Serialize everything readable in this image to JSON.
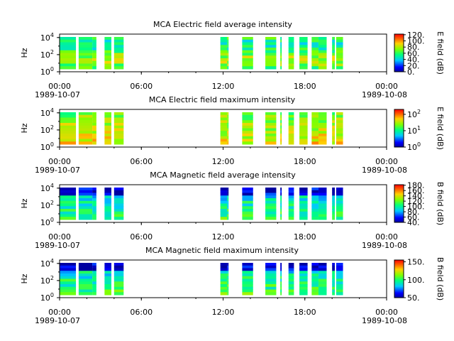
{
  "chart_data": [
    {
      "type": "heatmap",
      "title": "MCA  Electric field average intensity",
      "ylabel": "Hz",
      "colorbar_label": "E field (dB)",
      "colorbar_scale": "linear",
      "colorbar_ticks": [
        "0.",
        "20.",
        "40.",
        "60.",
        "80.",
        "100.",
        "120."
      ],
      "yscale": "log",
      "ylim": [
        "10^0",
        "10^4"
      ],
      "y_ticks": [
        {
          "base": "10",
          "exp": "0"
        },
        {
          "base": "10",
          "exp": "2"
        },
        {
          "base": "10",
          "exp": "4"
        }
      ],
      "x_ticks": [
        "00:00",
        "06:00",
        "12:00",
        "18:00",
        "00:00"
      ],
      "x_dates": [
        "1989-10-07",
        "1989-10-08"
      ],
      "data_intervals_hours": [
        [
          0.0,
          1.2
        ],
        [
          1.4,
          2.4
        ],
        [
          2.4,
          2.7
        ],
        [
          3.3,
          3.8
        ],
        [
          4.0,
          4.7
        ],
        [
          11.8,
          12.3
        ],
        [
          12.3,
          12.4
        ],
        [
          13.4,
          14.2
        ],
        [
          15.1,
          15.9
        ],
        [
          16.2,
          16.3
        ],
        [
          16.8,
          17.2
        ],
        [
          17.6,
          18.2
        ],
        [
          18.5,
          19.0
        ],
        [
          19.0,
          19.6
        ],
        [
          20.0,
          20.2
        ],
        [
          20.3,
          20.8
        ]
      ]
    },
    {
      "type": "heatmap",
      "title": "MCA  Electric field maximum intensity",
      "ylabel": "Hz",
      "colorbar_label": "E field (dB)",
      "colorbar_scale": "log",
      "colorbar_ticks": [
        {
          "base": "10",
          "exp": "0"
        },
        {
          "base": "10",
          "exp": "1"
        },
        {
          "base": "10",
          "exp": "2"
        }
      ],
      "yscale": "log",
      "ylim": [
        "10^0",
        "10^4"
      ],
      "y_ticks": [
        {
          "base": "10",
          "exp": "0"
        },
        {
          "base": "10",
          "exp": "2"
        },
        {
          "base": "10",
          "exp": "4"
        }
      ],
      "x_ticks": [
        "00:00",
        "06:00",
        "12:00",
        "18:00",
        "00:00"
      ],
      "x_dates": [
        "1989-10-07",
        "1989-10-08"
      ],
      "data_intervals_hours": [
        [
          0.0,
          1.2
        ],
        [
          1.4,
          2.4
        ],
        [
          2.4,
          2.7
        ],
        [
          3.3,
          3.8
        ],
        [
          4.0,
          4.7
        ],
        [
          11.8,
          12.3
        ],
        [
          12.3,
          12.4
        ],
        [
          13.4,
          14.2
        ],
        [
          15.1,
          15.9
        ],
        [
          16.2,
          16.3
        ],
        [
          16.8,
          17.2
        ],
        [
          17.6,
          18.2
        ],
        [
          18.5,
          19.0
        ],
        [
          19.0,
          19.6
        ],
        [
          20.0,
          20.2
        ],
        [
          20.3,
          20.8
        ]
      ]
    },
    {
      "type": "heatmap",
      "title": "MCA  Magnetic field average intensity",
      "ylabel": "Hz",
      "colorbar_label": "B field (dB)",
      "colorbar_scale": "linear",
      "colorbar_ticks": [
        "40.",
        "60.",
        "80.",
        "100.",
        "120.",
        "140.",
        "160.",
        "180."
      ],
      "yscale": "log",
      "ylim": [
        "10^0",
        "10^4"
      ],
      "y_ticks": [
        {
          "base": "10",
          "exp": "0"
        },
        {
          "base": "10",
          "exp": "2"
        },
        {
          "base": "10",
          "exp": "4"
        }
      ],
      "x_ticks": [
        "00:00",
        "06:00",
        "12:00",
        "18:00",
        "00:00"
      ],
      "x_dates": [
        "1989-10-07",
        "1989-10-08"
      ],
      "data_intervals_hours": [
        [
          0.0,
          1.2
        ],
        [
          1.4,
          2.4
        ],
        [
          2.4,
          2.7
        ],
        [
          3.3,
          3.8
        ],
        [
          4.0,
          4.7
        ],
        [
          11.8,
          12.3
        ],
        [
          12.3,
          12.4
        ],
        [
          13.4,
          14.2
        ],
        [
          15.1,
          15.9
        ],
        [
          16.2,
          16.3
        ],
        [
          16.8,
          17.2
        ],
        [
          17.6,
          18.2
        ],
        [
          18.5,
          19.0
        ],
        [
          19.0,
          19.6
        ],
        [
          20.0,
          20.2
        ],
        [
          20.3,
          20.8
        ]
      ]
    },
    {
      "type": "heatmap",
      "title": "MCA  Magnetic field maximum intensity",
      "ylabel": "Hz",
      "colorbar_label": "B field (dB)",
      "colorbar_scale": "linear",
      "colorbar_ticks": [
        "50.",
        "100.",
        "150."
      ],
      "yscale": "log",
      "ylim": [
        "10^0",
        "10^4"
      ],
      "y_ticks": [
        {
          "base": "10",
          "exp": "0"
        },
        {
          "base": "10",
          "exp": "2"
        },
        {
          "base": "10",
          "exp": "4"
        }
      ],
      "x_ticks": [
        "00:00",
        "06:00",
        "12:00",
        "18:00",
        "00:00"
      ],
      "x_dates": [
        "1989-10-07",
        "1989-10-08"
      ],
      "data_intervals_hours": [
        [
          0.0,
          1.2
        ],
        [
          1.4,
          2.4
        ],
        [
          2.4,
          2.7
        ],
        [
          3.3,
          3.8
        ],
        [
          4.0,
          4.7
        ],
        [
          11.8,
          12.3
        ],
        [
          12.3,
          12.4
        ],
        [
          13.4,
          14.2
        ],
        [
          15.1,
          15.9
        ],
        [
          16.2,
          16.3
        ],
        [
          16.8,
          17.2
        ],
        [
          17.6,
          18.2
        ],
        [
          18.5,
          19.0
        ],
        [
          19.0,
          19.6
        ],
        [
          20.0,
          20.2
        ],
        [
          20.3,
          20.8
        ]
      ]
    }
  ]
}
